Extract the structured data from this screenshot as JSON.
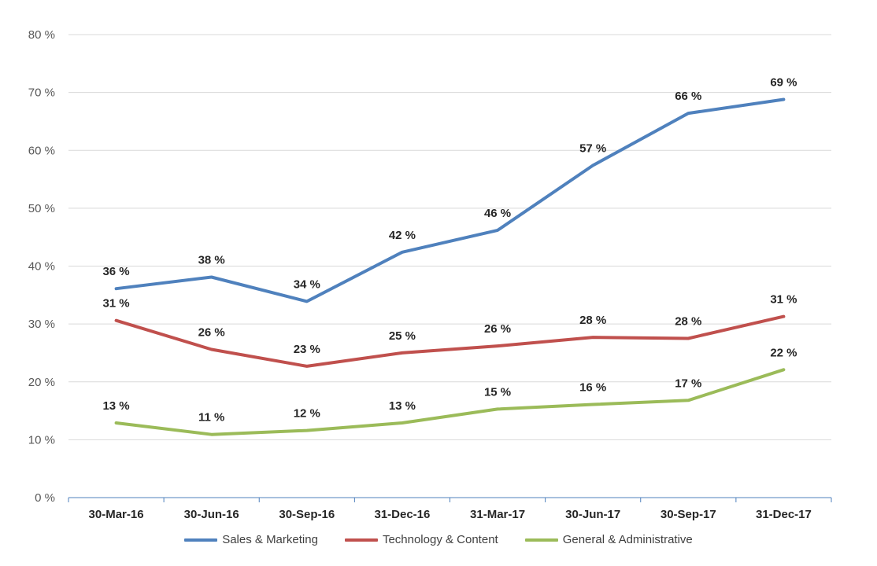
{
  "chart_data": {
    "type": "line",
    "title": "",
    "xlabel": "",
    "ylabel": "",
    "categories": [
      "30-Mar-16",
      "30-Jun-16",
      "30-Sep-16",
      "31-Dec-16",
      "31-Mar-17",
      "30-Jun-17",
      "30-Sep-17",
      "31-Dec-17"
    ],
    "ylim": [
      0,
      80
    ],
    "y_ticks": [
      0,
      10,
      20,
      30,
      40,
      50,
      60,
      70,
      80
    ],
    "y_tick_labels": [
      "0 %",
      "10 %",
      "20 %",
      "30 %",
      "40 %",
      "50 %",
      "60 %",
      "70 %",
      "80 %"
    ],
    "grid": true,
    "legend_position": "bottom",
    "series": [
      {
        "name": "Sales & Marketing",
        "color": "#4F81BD",
        "values": [
          36.1,
          38.1,
          33.9,
          42.4,
          46.2,
          57.4,
          66.4,
          68.8
        ],
        "labels": [
          "36 %",
          "38 %",
          "34 %",
          "42 %",
          "46 %",
          "57 %",
          "66 %",
          "69 %"
        ]
      },
      {
        "name": "Technology & Content",
        "color": "#C0504D",
        "values": [
          30.6,
          25.6,
          22.7,
          25.0,
          26.2,
          27.7,
          27.5,
          31.3
        ],
        "labels": [
          "31 %",
          "26 %",
          "23 %",
          "25 %",
          "26 %",
          "28 %",
          "28 %",
          "31 %"
        ]
      },
      {
        "name": "General & Administrative",
        "color": "#9BBB59",
        "values": [
          12.9,
          10.9,
          11.6,
          12.9,
          15.3,
          16.1,
          16.8,
          22.1
        ],
        "labels": [
          "13 %",
          "11 %",
          "12 %",
          "13 %",
          "15 %",
          "16 %",
          "17 %",
          "22 %"
        ]
      }
    ]
  }
}
